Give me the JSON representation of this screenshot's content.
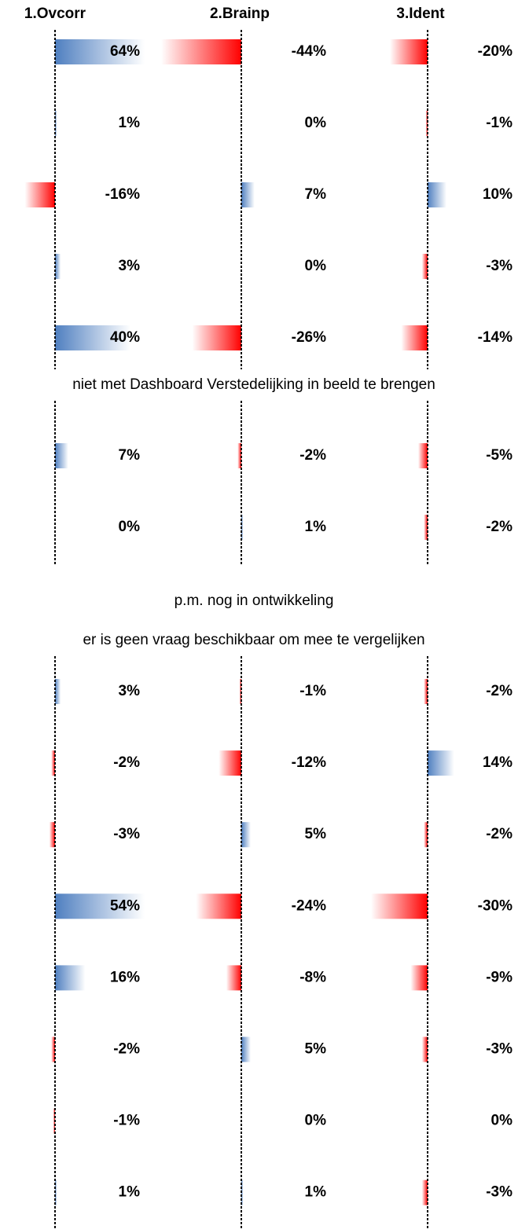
{
  "columns": [
    "1.Ovcorr",
    "2.Brainp",
    "3.Ident"
  ],
  "sections": [
    {
      "rows": [
        {
          "values": [
            64,
            -44,
            -20
          ],
          "labels": [
            "64%",
            "-44%",
            "-20%"
          ]
        },
        {
          "values": [
            1,
            0,
            -1
          ],
          "labels": [
            "1%",
            "0%",
            "-1%"
          ]
        },
        {
          "values": [
            -16,
            7,
            10
          ],
          "labels": [
            "-16%",
            "7%",
            "10%"
          ]
        },
        {
          "values": [
            3,
            0,
            -3
          ],
          "labels": [
            "3%",
            "0%",
            "-3%"
          ]
        },
        {
          "values": [
            40,
            -26,
            -14
          ],
          "labels": [
            "40%",
            "-26%",
            "-14%"
          ]
        }
      ]
    },
    {
      "note": "niet met Dashboard Verstedelijking in beeld te brengen"
    },
    {
      "rows": [
        {
          "values": [
            7,
            -2,
            -5
          ],
          "labels": [
            "7%",
            "-2%",
            "-5%"
          ]
        },
        {
          "values": [
            0,
            1,
            -2
          ],
          "labels": [
            "0%",
            "1%",
            "-2%"
          ]
        }
      ]
    },
    {
      "note": "p.m. nog in ontwikkeling"
    },
    {
      "note": "er is geen vraag beschikbaar om mee te vergelijken"
    },
    {
      "rows": [
        {
          "values": [
            3,
            -1,
            -2
          ],
          "labels": [
            "3%",
            "-1%",
            "-2%"
          ]
        },
        {
          "values": [
            -2,
            -12,
            14
          ],
          "labels": [
            "-2%",
            "-12%",
            "14%"
          ]
        },
        {
          "values": [
            -3,
            5,
            -2
          ],
          "labels": [
            "-3%",
            "5%",
            "-2%"
          ]
        },
        {
          "values": [
            54,
            -24,
            -30
          ],
          "labels": [
            "54%",
            "-24%",
            "-30%"
          ]
        },
        {
          "values": [
            16,
            -8,
            -9
          ],
          "labels": [
            "16%",
            "-8%",
            "-9%"
          ]
        },
        {
          "values": [
            -2,
            5,
            -3
          ],
          "labels": [
            "-2%",
            "5%",
            "-3%"
          ]
        },
        {
          "values": [
            -1,
            0,
            0
          ],
          "labels": [
            "-1%",
            "0%",
            "0%"
          ]
        },
        {
          "values": [
            1,
            1,
            -3
          ],
          "labels": [
            "1%",
            "1%",
            "-3%"
          ]
        }
      ]
    }
  ]
}
